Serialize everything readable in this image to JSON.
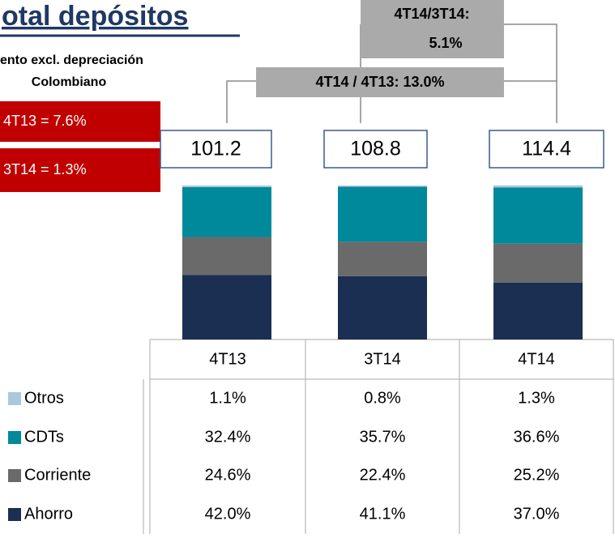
{
  "chart_data": {
    "type": "bar",
    "title": "otal depósitos",
    "subtitle": [
      "ento excl. depreciación",
      "Colombiano"
    ],
    "callouts": [
      "4T13 = 7.6%",
      "3T14 = 1.3%"
    ],
    "annotations": [
      "4T14/3T14:",
      "5.1%",
      "4T14 / 4T13: 13.0%"
    ],
    "categories": [
      "4T13",
      "3T14",
      "4T14"
    ],
    "totals": [
      101.2,
      108.8,
      114.4
    ],
    "ylim": [
      0,
      100
    ],
    "series": [
      {
        "name": "Otros",
        "color": "#a9c8e0",
        "values": [
          1.1,
          0.8,
          1.3
        ],
        "value_labels": [
          "1.1%",
          "0.8%",
          "1.3%"
        ]
      },
      {
        "name": "CDTs",
        "color": "#00899a",
        "values": [
          32.4,
          35.7,
          36.6
        ],
        "value_labels": [
          "32.4%",
          "35.7%",
          "36.6%"
        ]
      },
      {
        "name": "Corriente",
        "color": "#6a6a6a",
        "values": [
          24.6,
          22.4,
          25.2
        ],
        "value_labels": [
          "24.6%",
          "22.4%",
          "25.2%"
        ]
      },
      {
        "name": "Ahorro",
        "color": "#1b2f52",
        "values": [
          42.0,
          41.1,
          37.0
        ],
        "value_labels": [
          "42.0%",
          "41.1%",
          "37.0%"
        ]
      }
    ]
  }
}
